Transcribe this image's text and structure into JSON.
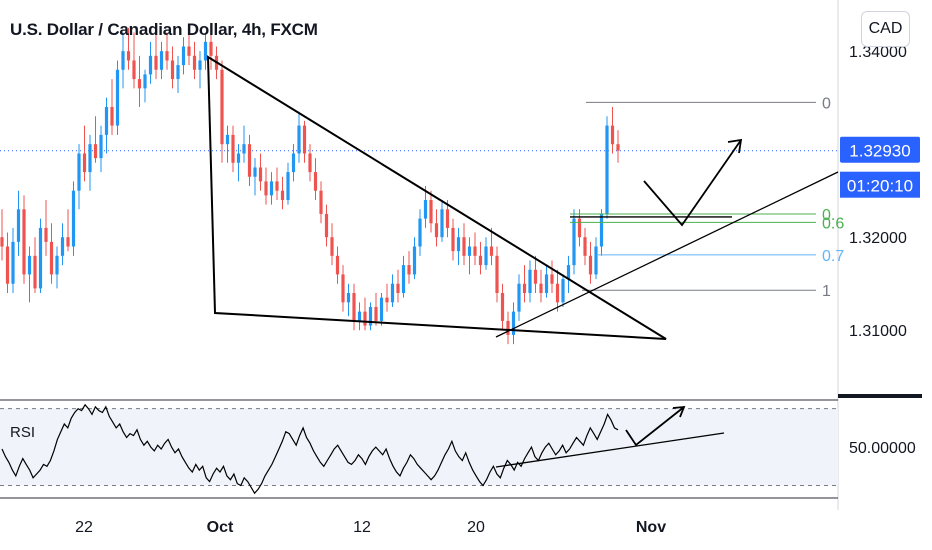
{
  "header": {
    "title": "U.S. Dollar / Canadian Dollar, 4h, FXCM",
    "currency_button": "CAD"
  },
  "colors": {
    "up": "#2196f3",
    "down": "#ef5350",
    "fib_0": "#787b86",
    "fib_green": "#4caf50",
    "fib_blue": "#64b5f6",
    "price_tag": "#2962ff"
  },
  "chart_data": [
    {
      "type": "candlestick",
      "title": "U.S. Dollar / Canadian Dollar, 4h, FXCM",
      "y_ticks": [
        "1.34000",
        "1.32000",
        "1.31000"
      ],
      "x_ticks": [
        "22",
        "Oct",
        "12",
        "20",
        "Nov"
      ],
      "ylim": [
        1.3025,
        1.3455
      ],
      "last_price": "1.32930",
      "countdown": "01:20:10",
      "fibonacci": [
        {
          "label": "0",
          "price": 1.3345
        },
        {
          "label": "0.",
          "price": 1.3225
        },
        {
          "label": "0.6",
          "price": 1.3216
        },
        {
          "label": "0.7",
          "price": 1.3181
        },
        {
          "label": "1",
          "price": 1.3143
        }
      ],
      "candles": [
        [
          1.32,
          1.323,
          1.3175,
          1.319
        ],
        [
          1.319,
          1.3205,
          1.314,
          1.315
        ],
        [
          1.315,
          1.321,
          1.314,
          1.3195
        ],
        [
          1.3195,
          1.325,
          1.318,
          1.323
        ],
        [
          1.323,
          1.3245,
          1.315,
          1.316
        ],
        [
          1.316,
          1.319,
          1.313,
          1.318
        ],
        [
          1.318,
          1.32,
          1.314,
          1.3145
        ],
        [
          1.3145,
          1.322,
          1.314,
          1.321
        ],
        [
          1.321,
          1.324,
          1.318,
          1.3195
        ],
        [
          1.3195,
          1.3215,
          1.315,
          1.316
        ],
        [
          1.316,
          1.319,
          1.3145,
          1.318
        ],
        [
          1.318,
          1.3215,
          1.317,
          1.32
        ],
        [
          1.32,
          1.323,
          1.3185,
          1.319
        ],
        [
          1.319,
          1.326,
          1.318,
          1.325
        ],
        [
          1.325,
          1.33,
          1.323,
          1.329
        ],
        [
          1.329,
          1.332,
          1.326,
          1.327
        ],
        [
          1.327,
          1.331,
          1.325,
          1.33
        ],
        [
          1.33,
          1.333,
          1.328,
          1.3285
        ],
        [
          1.3285,
          1.332,
          1.327,
          1.331
        ],
        [
          1.331,
          1.335,
          1.329,
          1.334
        ],
        [
          1.334,
          1.337,
          1.331,
          1.332
        ],
        [
          1.332,
          1.339,
          1.331,
          1.338
        ],
        [
          1.338,
          1.342,
          1.336,
          1.34
        ],
        [
          1.34,
          1.3425,
          1.338,
          1.339
        ],
        [
          1.339,
          1.342,
          1.336,
          1.337
        ],
        [
          1.337,
          1.3395,
          1.334,
          1.336
        ],
        [
          1.336,
          1.338,
          1.3345,
          1.3375
        ],
        [
          1.3375,
          1.341,
          1.3365,
          1.3395
        ],
        [
          1.3395,
          1.342,
          1.337,
          1.338
        ],
        [
          1.338,
          1.341,
          1.337,
          1.34
        ],
        [
          1.34,
          1.342,
          1.338,
          1.339
        ],
        [
          1.339,
          1.3405,
          1.336,
          1.337
        ],
        [
          1.337,
          1.3395,
          1.3355,
          1.3385
        ],
        [
          1.3385,
          1.3415,
          1.3375,
          1.3405
        ],
        [
          1.3405,
          1.3425,
          1.3385,
          1.3395
        ],
        [
          1.3395,
          1.341,
          1.337,
          1.338
        ],
        [
          1.338,
          1.34,
          1.336,
          1.339
        ],
        [
          1.339,
          1.342,
          1.338,
          1.341
        ],
        [
          1.341,
          1.3425,
          1.338,
          1.3395
        ],
        [
          1.3395,
          1.3405,
          1.337,
          1.338
        ],
        [
          1.338,
          1.339,
          1.328,
          1.33
        ],
        [
          1.33,
          1.332,
          1.328,
          1.331
        ],
        [
          1.331,
          1.332,
          1.327,
          1.328
        ],
        [
          1.328,
          1.33,
          1.326,
          1.329
        ],
        [
          1.329,
          1.332,
          1.328,
          1.33
        ],
        [
          1.33,
          1.331,
          1.3255,
          1.3265
        ],
        [
          1.3265,
          1.3285,
          1.3245,
          1.3275
        ],
        [
          1.3275,
          1.329,
          1.325,
          1.326
        ],
        [
          1.326,
          1.3275,
          1.3235,
          1.3245
        ],
        [
          1.3245,
          1.327,
          1.3235,
          1.326
        ],
        [
          1.326,
          1.3275,
          1.324,
          1.325
        ],
        [
          1.325,
          1.3265,
          1.323,
          1.324
        ],
        [
          1.324,
          1.328,
          1.3235,
          1.327
        ],
        [
          1.327,
          1.33,
          1.326,
          1.329
        ],
        [
          1.329,
          1.3335,
          1.328,
          1.332
        ],
        [
          1.332,
          1.3325,
          1.328,
          1.329
        ],
        [
          1.329,
          1.33,
          1.326,
          1.327
        ],
        [
          1.327,
          1.3285,
          1.324,
          1.325
        ],
        [
          1.325,
          1.326,
          1.3215,
          1.3225
        ],
        [
          1.3225,
          1.3235,
          1.319,
          1.32
        ],
        [
          1.32,
          1.3215,
          1.317,
          1.318
        ],
        [
          1.318,
          1.319,
          1.315,
          1.316
        ],
        [
          1.316,
          1.317,
          1.312,
          1.313
        ],
        [
          1.313,
          1.315,
          1.3115,
          1.314
        ],
        [
          1.314,
          1.315,
          1.31,
          1.311
        ],
        [
          1.311,
          1.313,
          1.31,
          1.312
        ],
        [
          1.312,
          1.3135,
          1.31,
          1.3105
        ],
        [
          1.3105,
          1.313,
          1.31,
          1.3125
        ],
        [
          1.3125,
          1.314,
          1.3105,
          1.311
        ],
        [
          1.311,
          1.314,
          1.3105,
          1.3135
        ],
        [
          1.3135,
          1.315,
          1.312,
          1.313
        ],
        [
          1.313,
          1.316,
          1.3125,
          1.315
        ],
        [
          1.315,
          1.3165,
          1.313,
          1.314
        ],
        [
          1.314,
          1.318,
          1.3135,
          1.317
        ],
        [
          1.317,
          1.3185,
          1.315,
          1.316
        ],
        [
          1.316,
          1.32,
          1.3155,
          1.319
        ],
        [
          1.319,
          1.323,
          1.318,
          1.322
        ],
        [
          1.322,
          1.3255,
          1.321,
          1.324
        ],
        [
          1.324,
          1.325,
          1.3205,
          1.3215
        ],
        [
          1.3215,
          1.323,
          1.319,
          1.32
        ],
        [
          1.32,
          1.324,
          1.3195,
          1.323
        ],
        [
          1.323,
          1.324,
          1.32,
          1.321
        ],
        [
          1.321,
          1.322,
          1.3175,
          1.3185
        ],
        [
          1.3185,
          1.321,
          1.317,
          1.32
        ],
        [
          1.32,
          1.3215,
          1.317,
          1.318
        ],
        [
          1.318,
          1.32,
          1.316,
          1.319
        ],
        [
          1.319,
          1.3205,
          1.317,
          1.318
        ],
        [
          1.318,
          1.3195,
          1.316,
          1.317
        ],
        [
          1.317,
          1.32,
          1.3165,
          1.319
        ],
        [
          1.319,
          1.321,
          1.317,
          1.318
        ],
        [
          1.318,
          1.319,
          1.313,
          1.314
        ],
        [
          1.314,
          1.315,
          1.31,
          1.311
        ],
        [
          1.311,
          1.312,
          1.3085,
          1.3095
        ],
        [
          1.3095,
          1.313,
          1.3085,
          1.312
        ],
        [
          1.312,
          1.316,
          1.311,
          1.315
        ],
        [
          1.315,
          1.317,
          1.313,
          1.314
        ],
        [
          1.314,
          1.3175,
          1.313,
          1.3165
        ],
        [
          1.3165,
          1.318,
          1.314,
          1.315
        ],
        [
          1.315,
          1.3165,
          1.313,
          1.314
        ],
        [
          1.314,
          1.317,
          1.3135,
          1.316
        ],
        [
          1.316,
          1.3175,
          1.314,
          1.315
        ],
        [
          1.315,
          1.3165,
          1.312,
          1.313
        ],
        [
          1.313,
          1.316,
          1.3125,
          1.3155
        ],
        [
          1.3155,
          1.318,
          1.314,
          1.317
        ],
        [
          1.317,
          1.323,
          1.316,
          1.322
        ],
        [
          1.322,
          1.323,
          1.319,
          1.32
        ],
        [
          1.32,
          1.321,
          1.317,
          1.318
        ],
        [
          1.318,
          1.3195,
          1.315,
          1.316
        ],
        [
          1.316,
          1.32,
          1.3155,
          1.319
        ],
        [
          1.319,
          1.323,
          1.318,
          1.3225
        ],
        [
          1.3225,
          1.333,
          1.322,
          1.332
        ],
        [
          1.332,
          1.334,
          1.329,
          1.33
        ],
        [
          1.33,
          1.3315,
          1.328,
          1.3293
        ]
      ]
    },
    {
      "type": "line",
      "name": "RSI",
      "title": "RSI",
      "y_ticks": [
        "50.00000"
      ],
      "ylim": [
        24,
        74
      ],
      "bands": [
        70,
        30
      ],
      "values": [
        49,
        45,
        42,
        38,
        35,
        40,
        44,
        41,
        38,
        34,
        36,
        38,
        41,
        40,
        43,
        48,
        54,
        58,
        62,
        60,
        65,
        68,
        70,
        69,
        72,
        70,
        67,
        71,
        69,
        68,
        71,
        66,
        63,
        60,
        62,
        58,
        55,
        57,
        56,
        59,
        54,
        51,
        53,
        50,
        48,
        51,
        49,
        52,
        54,
        50,
        47,
        49,
        45,
        42,
        39,
        37,
        41,
        38,
        40,
        34,
        32,
        36,
        39,
        37,
        40,
        35,
        33,
        36,
        31,
        30,
        34,
        32,
        29,
        26,
        28,
        31,
        35,
        38,
        41,
        45,
        49,
        53,
        58,
        57,
        54,
        51,
        56,
        60,
        55,
        52,
        48,
        45,
        42,
        40,
        43,
        46,
        49,
        51,
        48,
        45,
        42,
        41,
        43,
        46,
        44,
        41,
        45,
        48,
        50,
        48,
        46,
        49,
        44,
        40,
        37,
        35,
        39,
        42,
        46,
        44,
        41,
        39,
        37,
        35,
        33,
        35,
        38,
        42,
        46,
        49,
        53,
        48,
        45,
        43,
        47,
        42,
        38,
        35,
        32,
        30,
        33,
        37,
        40,
        36,
        34,
        39,
        43,
        41,
        38,
        42,
        40,
        44,
        47,
        50,
        45,
        43,
        47,
        50,
        52,
        49,
        46,
        48,
        51,
        47,
        49,
        52,
        55,
        53,
        51,
        56,
        60,
        57,
        54,
        58,
        62,
        67,
        64,
        60,
        59
      ]
    }
  ],
  "annotations": {
    "rsi_label": "RSI"
  }
}
